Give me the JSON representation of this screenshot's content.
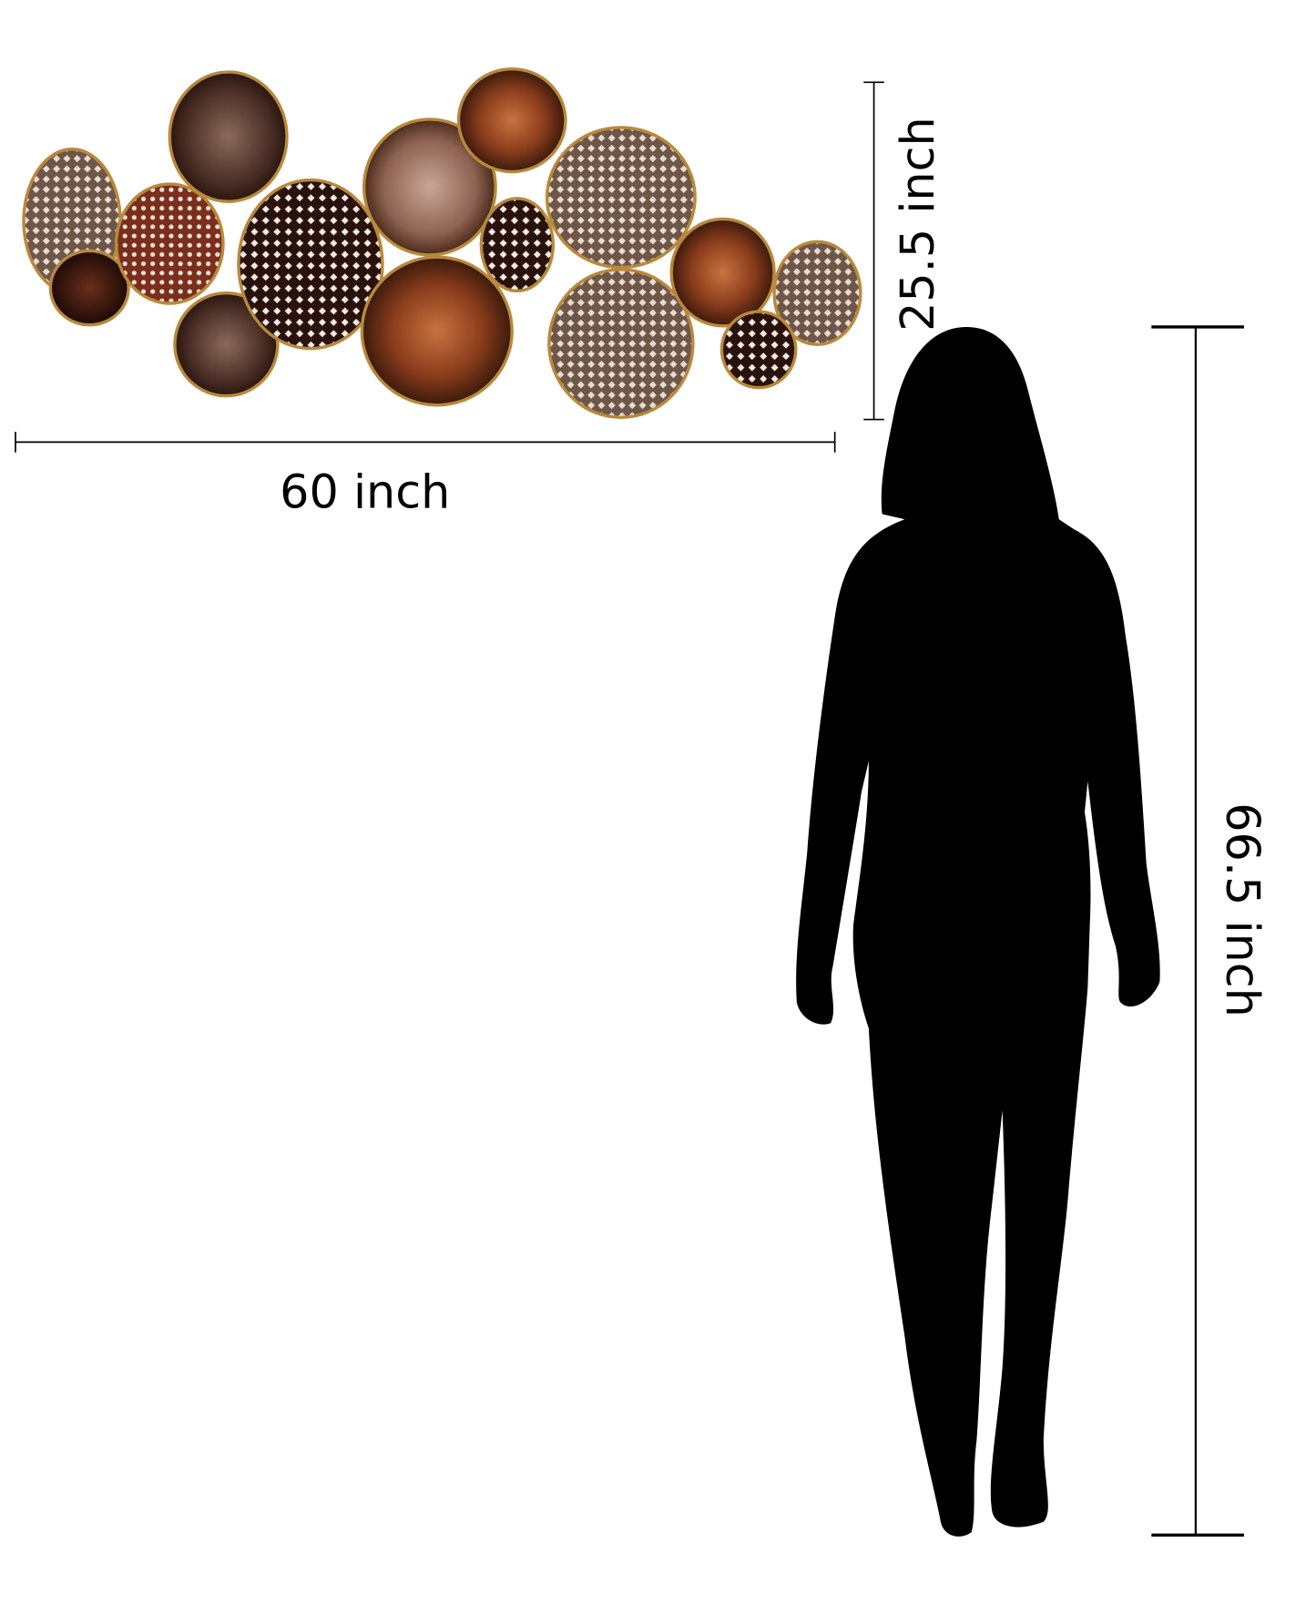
{
  "dimensions": {
    "width_label": "60 inch",
    "artwork_height_label": "25.5 inch",
    "person_height_label": "66.5 inch"
  },
  "colors": {
    "gold_rim": "#b8893c",
    "copper": "#a5532a",
    "dark_brown": "#3a1a10",
    "smoky_brown": "#6b4a3c",
    "pink_brown": "#9a7263",
    "silhouette": "#000000"
  }
}
